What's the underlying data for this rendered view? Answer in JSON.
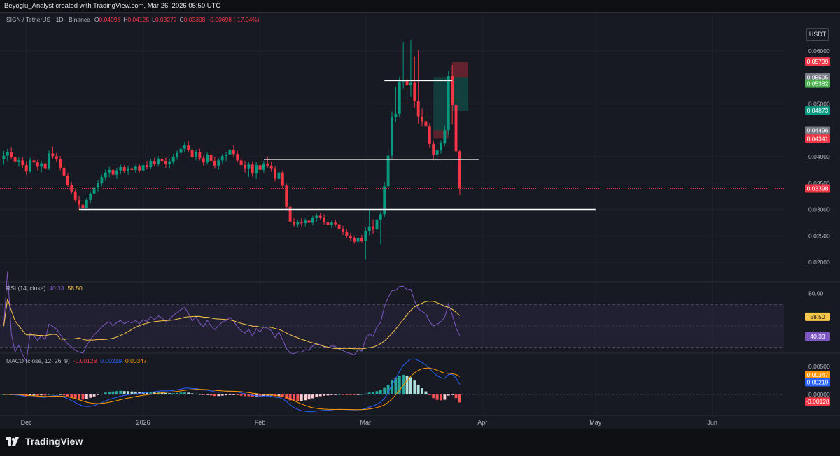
{
  "header": {
    "caption": "Beyoglu_Analyst created with TradingView.com, Mar 26, 2026 05:50 UTC"
  },
  "legend": {
    "symbol": "SIGN / TetherUS · 1D · Binance",
    "open_label": "O",
    "open": "0.04096",
    "high_label": "H",
    "high": "0.04125",
    "low_label": "L",
    "low": "0.03272",
    "close_label": "C",
    "close": "0.03398",
    "change": "-0.00698 (-17.04%)"
  },
  "currency_button": "USDT",
  "price_axis": {
    "ticks": [
      "0.06000",
      "0.05000",
      "0.04000",
      "0.03500",
      "0.03000",
      "0.02500",
      "0.02000"
    ],
    "tick_values": [
      0.06,
      0.05,
      0.04,
      0.035,
      0.03,
      0.025,
      0.02
    ],
    "badges": [
      {
        "text": "0.05799",
        "value": 0.05799,
        "color": "#f23645"
      },
      {
        "text": "0.05505",
        "value": 0.05505,
        "color": "#787b86"
      },
      {
        "text": "0.05382",
        "value": 0.05382,
        "color": "#4caf50"
      },
      {
        "text": "0.04873",
        "value": 0.04873,
        "color": "#089981"
      },
      {
        "text": "0.04496",
        "value": 0.04496,
        "color": "#787b86"
      },
      {
        "text": "0.04341",
        "value": 0.04341,
        "color": "#f23645"
      },
      {
        "text": "0.03398",
        "value": 0.03398,
        "color": "#f23645"
      }
    ]
  },
  "rsi": {
    "title": "RSI (14, close)",
    "value": "40.33",
    "ma_value": "58.50",
    "tick": "80.00",
    "tick_value": 80,
    "value_num": 40.33,
    "ma_num": 58.5,
    "value_color": "#7e57c2",
    "ma_color": "#f7c548"
  },
  "macd": {
    "title": "MACD (close, 12, 26, 9)",
    "hist": "-0.00128",
    "macd": "0.00219",
    "signal": "0.00347",
    "ticks": [
      "0.00500",
      "0.00000"
    ],
    "tick_values": [
      0.005,
      0
    ],
    "badges": [
      {
        "text": "0.00347",
        "value": 0.00347,
        "color": "#ff9800"
      },
      {
        "text": "0.00219",
        "value": 0.00219,
        "color": "#2962ff"
      },
      {
        "text": "-0.00128",
        "value": -0.00128,
        "color": "#f23645"
      }
    ]
  },
  "time_axis": [
    "Dec",
    "2026",
    "Feb",
    "Mar",
    "Apr",
    "May",
    "Jun"
  ],
  "brand": "TradingView",
  "colors": {
    "up": "#089981",
    "down": "#f23645",
    "background": "#171a22",
    "grid": "#2a2e39"
  },
  "chart_data": {
    "type": "candlestick",
    "symbol": "SIGN / TetherUS",
    "interval": "1D",
    "exchange": "Binance",
    "x_start": "2025-11-24",
    "x_end": "2026-06-20",
    "ylim": [
      0.0185,
      0.0625
    ],
    "log_scale": false,
    "candles": [
      {
        "d": "2025-11-25",
        "o": 0.0395,
        "h": 0.0411,
        "l": 0.0385,
        "c": 0.0402
      },
      {
        "d": "2025-11-26",
        "o": 0.0402,
        "h": 0.0415,
        "l": 0.0392,
        "c": 0.0408
      },
      {
        "d": "2025-11-27",
        "o": 0.0408,
        "h": 0.0418,
        "l": 0.0395,
        "c": 0.04
      },
      {
        "d": "2025-11-28",
        "o": 0.04,
        "h": 0.0405,
        "l": 0.0386,
        "c": 0.0391
      },
      {
        "d": "2025-11-29",
        "o": 0.0391,
        "h": 0.0398,
        "l": 0.0381,
        "c": 0.0393
      },
      {
        "d": "2025-11-30",
        "o": 0.0393,
        "h": 0.0399,
        "l": 0.0379,
        "c": 0.0384
      },
      {
        "d": "2025-12-01",
        "o": 0.0384,
        "h": 0.0391,
        "l": 0.0366,
        "c": 0.0372
      },
      {
        "d": "2025-12-02",
        "o": 0.0372,
        "h": 0.0398,
        "l": 0.0368,
        "c": 0.0393
      },
      {
        "d": "2025-12-03",
        "o": 0.0393,
        "h": 0.0402,
        "l": 0.0383,
        "c": 0.0389
      },
      {
        "d": "2025-12-04",
        "o": 0.0389,
        "h": 0.0394,
        "l": 0.0374,
        "c": 0.0381
      },
      {
        "d": "2025-12-05",
        "o": 0.0381,
        "h": 0.0392,
        "l": 0.037,
        "c": 0.0387
      },
      {
        "d": "2025-12-06",
        "o": 0.0387,
        "h": 0.0393,
        "l": 0.0375,
        "c": 0.0378
      },
      {
        "d": "2025-12-07",
        "o": 0.0378,
        "h": 0.0412,
        "l": 0.0375,
        "c": 0.0406
      },
      {
        "d": "2025-12-08",
        "o": 0.0406,
        "h": 0.0419,
        "l": 0.0396,
        "c": 0.0401
      },
      {
        "d": "2025-12-09",
        "o": 0.0401,
        "h": 0.0407,
        "l": 0.039,
        "c": 0.0395
      },
      {
        "d": "2025-12-10",
        "o": 0.0395,
        "h": 0.0401,
        "l": 0.0374,
        "c": 0.0379
      },
      {
        "d": "2025-12-11",
        "o": 0.0379,
        "h": 0.0385,
        "l": 0.0359,
        "c": 0.0364
      },
      {
        "d": "2025-12-12",
        "o": 0.0364,
        "h": 0.0369,
        "l": 0.0343,
        "c": 0.0347
      },
      {
        "d": "2025-12-13",
        "o": 0.0347,
        "h": 0.0352,
        "l": 0.033,
        "c": 0.0334
      },
      {
        "d": "2025-12-14",
        "o": 0.0334,
        "h": 0.0339,
        "l": 0.0314,
        "c": 0.0318
      },
      {
        "d": "2025-12-15",
        "o": 0.0318,
        "h": 0.0326,
        "l": 0.03,
        "c": 0.0309
      },
      {
        "d": "2025-12-16",
        "o": 0.0309,
        "h": 0.0318,
        "l": 0.0294,
        "c": 0.0303
      },
      {
        "d": "2025-12-17",
        "o": 0.0303,
        "h": 0.0322,
        "l": 0.0298,
        "c": 0.0318
      },
      {
        "d": "2025-12-18",
        "o": 0.0318,
        "h": 0.0334,
        "l": 0.0312,
        "c": 0.033
      },
      {
        "d": "2025-12-19",
        "o": 0.033,
        "h": 0.0346,
        "l": 0.0325,
        "c": 0.0341
      },
      {
        "d": "2025-12-20",
        "o": 0.0341,
        "h": 0.0355,
        "l": 0.0334,
        "c": 0.035
      },
      {
        "d": "2025-12-21",
        "o": 0.035,
        "h": 0.0366,
        "l": 0.0344,
        "c": 0.0361
      },
      {
        "d": "2025-12-22",
        "o": 0.0361,
        "h": 0.0376,
        "l": 0.0354,
        "c": 0.037
      },
      {
        "d": "2025-12-23",
        "o": 0.037,
        "h": 0.0381,
        "l": 0.0361,
        "c": 0.0375
      },
      {
        "d": "2025-12-24",
        "o": 0.0375,
        "h": 0.038,
        "l": 0.036,
        "c": 0.0366
      },
      {
        "d": "2025-12-25",
        "o": 0.0366,
        "h": 0.0379,
        "l": 0.0358,
        "c": 0.0374
      },
      {
        "d": "2025-12-26",
        "o": 0.0374,
        "h": 0.0385,
        "l": 0.0367,
        "c": 0.038
      },
      {
        "d": "2025-12-27",
        "o": 0.038,
        "h": 0.0384,
        "l": 0.0368,
        "c": 0.0372
      },
      {
        "d": "2025-12-28",
        "o": 0.0372,
        "h": 0.0383,
        "l": 0.0366,
        "c": 0.0378
      },
      {
        "d": "2025-12-29",
        "o": 0.0378,
        "h": 0.0387,
        "l": 0.0372,
        "c": 0.0375
      },
      {
        "d": "2025-12-30",
        "o": 0.0375,
        "h": 0.0384,
        "l": 0.0369,
        "c": 0.0381
      },
      {
        "d": "2025-12-31",
        "o": 0.0381,
        "h": 0.0386,
        "l": 0.037,
        "c": 0.0374
      },
      {
        "d": "2026-01-01",
        "o": 0.0374,
        "h": 0.0388,
        "l": 0.0368,
        "c": 0.0384
      },
      {
        "d": "2026-01-02",
        "o": 0.0384,
        "h": 0.0392,
        "l": 0.0376,
        "c": 0.038
      },
      {
        "d": "2026-01-03",
        "o": 0.038,
        "h": 0.0396,
        "l": 0.0376,
        "c": 0.0392
      },
      {
        "d": "2026-01-04",
        "o": 0.0392,
        "h": 0.0398,
        "l": 0.0381,
        "c": 0.0386
      },
      {
        "d": "2026-01-05",
        "o": 0.0386,
        "h": 0.0401,
        "l": 0.0381,
        "c": 0.0396
      },
      {
        "d": "2026-01-06",
        "o": 0.0396,
        "h": 0.0408,
        "l": 0.0388,
        "c": 0.0392
      },
      {
        "d": "2026-01-07",
        "o": 0.0392,
        "h": 0.0398,
        "l": 0.0379,
        "c": 0.0386
      },
      {
        "d": "2026-01-08",
        "o": 0.0386,
        "h": 0.0396,
        "l": 0.0378,
        "c": 0.0391
      },
      {
        "d": "2026-01-09",
        "o": 0.0391,
        "h": 0.0405,
        "l": 0.0385,
        "c": 0.04
      },
      {
        "d": "2026-01-10",
        "o": 0.04,
        "h": 0.0412,
        "l": 0.0394,
        "c": 0.0407
      },
      {
        "d": "2026-01-11",
        "o": 0.0407,
        "h": 0.042,
        "l": 0.0401,
        "c": 0.0415
      },
      {
        "d": "2026-01-12",
        "o": 0.0415,
        "h": 0.0428,
        "l": 0.0408,
        "c": 0.0421
      },
      {
        "d": "2026-01-13",
        "o": 0.0421,
        "h": 0.043,
        "l": 0.0408,
        "c": 0.0412
      },
      {
        "d": "2026-01-14",
        "o": 0.0412,
        "h": 0.0418,
        "l": 0.0395,
        "c": 0.0399
      },
      {
        "d": "2026-01-15",
        "o": 0.0399,
        "h": 0.0413,
        "l": 0.0393,
        "c": 0.0409
      },
      {
        "d": "2026-01-16",
        "o": 0.0409,
        "h": 0.0415,
        "l": 0.0393,
        "c": 0.0397
      },
      {
        "d": "2026-01-17",
        "o": 0.0397,
        "h": 0.0402,
        "l": 0.0383,
        "c": 0.0389
      },
      {
        "d": "2026-01-18",
        "o": 0.0389,
        "h": 0.0408,
        "l": 0.0385,
        "c": 0.0404
      },
      {
        "d": "2026-01-19",
        "o": 0.0404,
        "h": 0.0411,
        "l": 0.0386,
        "c": 0.0392
      },
      {
        "d": "2026-01-20",
        "o": 0.0392,
        "h": 0.04,
        "l": 0.0378,
        "c": 0.0383
      },
      {
        "d": "2026-01-21",
        "o": 0.0383,
        "h": 0.0397,
        "l": 0.0376,
        "c": 0.0393
      },
      {
        "d": "2026-01-22",
        "o": 0.0393,
        "h": 0.0405,
        "l": 0.0387,
        "c": 0.0401
      },
      {
        "d": "2026-01-23",
        "o": 0.0401,
        "h": 0.0409,
        "l": 0.0392,
        "c": 0.0404
      },
      {
        "d": "2026-01-24",
        "o": 0.0404,
        "h": 0.0418,
        "l": 0.0399,
        "c": 0.0413
      },
      {
        "d": "2026-01-25",
        "o": 0.0413,
        "h": 0.0421,
        "l": 0.04,
        "c": 0.0405
      },
      {
        "d": "2026-01-26",
        "o": 0.0405,
        "h": 0.0411,
        "l": 0.0389,
        "c": 0.0393
      },
      {
        "d": "2026-01-27",
        "o": 0.0393,
        "h": 0.0399,
        "l": 0.0378,
        "c": 0.0384
      },
      {
        "d": "2026-01-28",
        "o": 0.0384,
        "h": 0.0392,
        "l": 0.037,
        "c": 0.0378
      },
      {
        "d": "2026-01-29",
        "o": 0.0378,
        "h": 0.0389,
        "l": 0.0362,
        "c": 0.0385
      },
      {
        "d": "2026-01-30",
        "o": 0.0385,
        "h": 0.0391,
        "l": 0.0362,
        "c": 0.0368
      },
      {
        "d": "2026-01-31",
        "o": 0.0368,
        "h": 0.039,
        "l": 0.0358,
        "c": 0.0384
      },
      {
        "d": "2026-02-01",
        "o": 0.0384,
        "h": 0.0396,
        "l": 0.0369,
        "c": 0.0375
      },
      {
        "d": "2026-02-02",
        "o": 0.0375,
        "h": 0.0392,
        "l": 0.037,
        "c": 0.0387
      },
      {
        "d": "2026-02-03",
        "o": 0.0387,
        "h": 0.0401,
        "l": 0.0379,
        "c": 0.0383
      },
      {
        "d": "2026-02-04",
        "o": 0.0383,
        "h": 0.039,
        "l": 0.0371,
        "c": 0.0378
      },
      {
        "d": "2026-02-05",
        "o": 0.0378,
        "h": 0.0382,
        "l": 0.0353,
        "c": 0.0358
      },
      {
        "d": "2026-02-06",
        "o": 0.0358,
        "h": 0.0375,
        "l": 0.0351,
        "c": 0.037
      },
      {
        "d": "2026-02-07",
        "o": 0.037,
        "h": 0.0374,
        "l": 0.034,
        "c": 0.0345
      },
      {
        "d": "2026-02-08",
        "o": 0.0345,
        "h": 0.0349,
        "l": 0.0299,
        "c": 0.0305
      },
      {
        "d": "2026-02-09",
        "o": 0.0305,
        "h": 0.031,
        "l": 0.0271,
        "c": 0.0277
      },
      {
        "d": "2026-02-10",
        "o": 0.0277,
        "h": 0.0285,
        "l": 0.0268,
        "c": 0.0272
      },
      {
        "d": "2026-02-11",
        "o": 0.0272,
        "h": 0.0281,
        "l": 0.0266,
        "c": 0.0276
      },
      {
        "d": "2026-02-12",
        "o": 0.0276,
        "h": 0.0283,
        "l": 0.0268,
        "c": 0.0274
      },
      {
        "d": "2026-02-13",
        "o": 0.0274,
        "h": 0.0283,
        "l": 0.0268,
        "c": 0.0279
      },
      {
        "d": "2026-02-14",
        "o": 0.0279,
        "h": 0.0285,
        "l": 0.027,
        "c": 0.0275
      },
      {
        "d": "2026-02-15",
        "o": 0.0275,
        "h": 0.0288,
        "l": 0.0271,
        "c": 0.0284
      },
      {
        "d": "2026-02-16",
        "o": 0.0284,
        "h": 0.0292,
        "l": 0.0277,
        "c": 0.0288
      },
      {
        "d": "2026-02-17",
        "o": 0.0288,
        "h": 0.0294,
        "l": 0.0281,
        "c": 0.0285
      },
      {
        "d": "2026-02-18",
        "o": 0.0285,
        "h": 0.0291,
        "l": 0.0271,
        "c": 0.0276
      },
      {
        "d": "2026-02-19",
        "o": 0.0276,
        "h": 0.0282,
        "l": 0.0266,
        "c": 0.0271
      },
      {
        "d": "2026-02-20",
        "o": 0.0271,
        "h": 0.0279,
        "l": 0.0265,
        "c": 0.0275
      },
      {
        "d": "2026-02-21",
        "o": 0.0275,
        "h": 0.0281,
        "l": 0.0268,
        "c": 0.0272
      },
      {
        "d": "2026-02-22",
        "o": 0.0272,
        "h": 0.0278,
        "l": 0.0259,
        "c": 0.0263
      },
      {
        "d": "2026-02-23",
        "o": 0.0263,
        "h": 0.0269,
        "l": 0.0252,
        "c": 0.0257
      },
      {
        "d": "2026-02-24",
        "o": 0.0257,
        "h": 0.0262,
        "l": 0.0246,
        "c": 0.025
      },
      {
        "d": "2026-02-25",
        "o": 0.025,
        "h": 0.0255,
        "l": 0.024,
        "c": 0.0245
      },
      {
        "d": "2026-02-26",
        "o": 0.0245,
        "h": 0.0251,
        "l": 0.0235,
        "c": 0.0239
      },
      {
        "d": "2026-02-27",
        "o": 0.0239,
        "h": 0.025,
        "l": 0.0233,
        "c": 0.0246
      },
      {
        "d": "2026-02-28",
        "o": 0.0246,
        "h": 0.0252,
        "l": 0.0237,
        "c": 0.0241
      },
      {
        "d": "2026-03-01",
        "o": 0.0241,
        "h": 0.0266,
        "l": 0.0205,
        "c": 0.0259
      },
      {
        "d": "2026-03-02",
        "o": 0.0259,
        "h": 0.0301,
        "l": 0.0251,
        "c": 0.0268
      },
      {
        "d": "2026-03-03",
        "o": 0.0268,
        "h": 0.0281,
        "l": 0.0254,
        "c": 0.0262
      },
      {
        "d": "2026-03-04",
        "o": 0.0262,
        "h": 0.0286,
        "l": 0.0257,
        "c": 0.0281
      },
      {
        "d": "2026-03-05",
        "o": 0.0281,
        "h": 0.0296,
        "l": 0.0234,
        "c": 0.0291
      },
      {
        "d": "2026-03-06",
        "o": 0.0291,
        "h": 0.0352,
        "l": 0.0286,
        "c": 0.0344
      },
      {
        "d": "2026-03-07",
        "o": 0.0344,
        "h": 0.0415,
        "l": 0.0338,
        "c": 0.0402
      },
      {
        "d": "2026-03-08",
        "o": 0.0402,
        "h": 0.0486,
        "l": 0.0395,
        "c": 0.0474
      },
      {
        "d": "2026-03-09",
        "o": 0.0474,
        "h": 0.0532,
        "l": 0.0465,
        "c": 0.0481
      },
      {
        "d": "2026-03-10",
        "o": 0.0481,
        "h": 0.0551,
        "l": 0.0474,
        "c": 0.0542
      },
      {
        "d": "2026-03-11",
        "o": 0.0542,
        "h": 0.0617,
        "l": 0.0529,
        "c": 0.0545
      },
      {
        "d": "2026-03-12",
        "o": 0.0545,
        "h": 0.058,
        "l": 0.0501,
        "c": 0.0535
      },
      {
        "d": "2026-03-13",
        "o": 0.0535,
        "h": 0.0621,
        "l": 0.0514,
        "c": 0.0541
      },
      {
        "d": "2026-03-14",
        "o": 0.0541,
        "h": 0.059,
        "l": 0.0493,
        "c": 0.0505
      },
      {
        "d": "2026-03-15",
        "o": 0.0505,
        "h": 0.0601,
        "l": 0.0462,
        "c": 0.0476
      },
      {
        "d": "2026-03-16",
        "o": 0.0476,
        "h": 0.0491,
        "l": 0.0458,
        "c": 0.0467
      },
      {
        "d": "2026-03-17",
        "o": 0.0467,
        "h": 0.0482,
        "l": 0.0445,
        "c": 0.0458
      },
      {
        "d": "2026-03-18",
        "o": 0.0458,
        "h": 0.0463,
        "l": 0.0417,
        "c": 0.0424
      },
      {
        "d": "2026-03-19",
        "o": 0.0424,
        "h": 0.043,
        "l": 0.0393,
        "c": 0.0404
      },
      {
        "d": "2026-03-20",
        "o": 0.0404,
        "h": 0.0418,
        "l": 0.0392,
        "c": 0.0412
      },
      {
        "d": "2026-03-21",
        "o": 0.0412,
        "h": 0.0431,
        "l": 0.0406,
        "c": 0.0425
      },
      {
        "d": "2026-03-22",
        "o": 0.0425,
        "h": 0.0458,
        "l": 0.042,
        "c": 0.045
      },
      {
        "d": "2026-03-23",
        "o": 0.045,
        "h": 0.0562,
        "l": 0.0441,
        "c": 0.0553
      },
      {
        "d": "2026-03-24",
        "o": 0.0553,
        "h": 0.0573,
        "l": 0.0461,
        "c": 0.0498
      },
      {
        "d": "2026-03-25",
        "o": 0.0498,
        "h": 0.0512,
        "l": 0.0406,
        "c": 0.041
      },
      {
        "d": "2026-03-26",
        "o": 0.041,
        "h": 0.0413,
        "l": 0.0327,
        "c": 0.034
      }
    ],
    "horizontal_lines": [
      {
        "price": 0.0544,
        "from": "2026-03-06",
        "to": "2026-03-24"
      },
      {
        "price": 0.0395,
        "from": "2026-02-02",
        "to": "2026-03-31"
      },
      {
        "price": 0.03,
        "from": "2025-12-15",
        "to": "2026-05-01"
      }
    ],
    "position_box": {
      "entry": 0.04496,
      "stop": 0.04341,
      "target": 0.05505,
      "short_entry": 0.05505,
      "short_stop": 0.05799,
      "short_target": 0.04873,
      "long_from": "2026-03-19",
      "long_to": "2026-03-23",
      "short_from": "2026-03-24",
      "short_to": "2026-03-26"
    },
    "last_price": 0.03398
  }
}
